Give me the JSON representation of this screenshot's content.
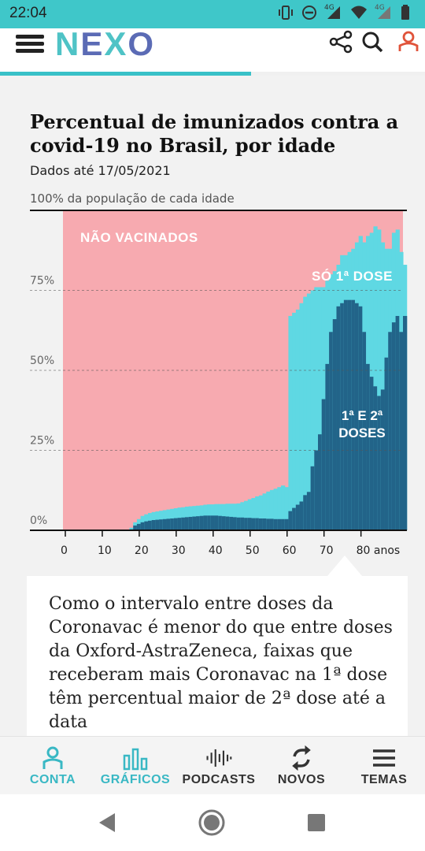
{
  "status_bar": {
    "time": "22:04",
    "network_label_1": "4G",
    "network_label_2": "4G",
    "icons": [
      "vibrate-icon",
      "dnd-icon",
      "signal-icon",
      "wifi-icon",
      "signal-icon",
      "battery-icon"
    ]
  },
  "header": {
    "logo": "NEXO",
    "read_progress": 0.59,
    "icons": [
      "menu-icon",
      "share-icon",
      "search-icon",
      "user-icon"
    ]
  },
  "chart": {
    "title": "Percentual de imunizados contra a covid-19 no Brasil, por idade",
    "subtitle": "Dados até 17/05/2021",
    "top_label": "100% da população de cada idade",
    "annotations": {
      "unvaccinated": "NÃO VACINADOS",
      "first_dose": "SÓ 1ª DOSE",
      "both_doses_line1": "1ª E 2ª",
      "both_doses_line2": "DOSES"
    },
    "colors": {
      "unvaccinated": "#f7aab0",
      "first_dose": "#5fd8e3",
      "both_doses": "#226489",
      "gridline": "#555555"
    }
  },
  "chart_data": {
    "type": "area",
    "stacked": true,
    "xlabel": "",
    "ylabel": "",
    "x_tick_labels": [
      "0",
      "10",
      "20",
      "30",
      "40",
      "50",
      "60",
      "70",
      "80 anos"
    ],
    "x_ticks": [
      0,
      10,
      20,
      30,
      40,
      50,
      60,
      70,
      80
    ],
    "y_tick_labels": [
      "0%",
      "25%",
      "50%",
      "75%"
    ],
    "y_ticks": [
      0,
      25,
      50,
      75
    ],
    "xlim": [
      0,
      92
    ],
    "ylim": [
      0,
      100
    ],
    "grid": "dashed horizontal",
    "legend": "in-chart labels",
    "x": [
      0,
      1,
      2,
      3,
      4,
      5,
      6,
      7,
      8,
      9,
      10,
      11,
      12,
      13,
      14,
      15,
      16,
      17,
      18,
      19,
      20,
      21,
      22,
      23,
      24,
      25,
      26,
      27,
      28,
      29,
      30,
      31,
      32,
      33,
      34,
      35,
      36,
      37,
      38,
      39,
      40,
      41,
      42,
      43,
      44,
      45,
      46,
      47,
      48,
      49,
      50,
      51,
      52,
      53,
      54,
      55,
      56,
      57,
      58,
      59,
      60,
      61,
      62,
      63,
      64,
      65,
      66,
      67,
      68,
      69,
      70,
      71,
      72,
      73,
      74,
      75,
      76,
      77,
      78,
      79,
      80,
      81,
      82,
      83,
      84,
      85,
      86,
      87,
      88,
      89,
      90,
      91,
      92
    ],
    "series": [
      {
        "name": "1ª E 2ª DOSES",
        "values": [
          0,
          0,
          0,
          0,
          0,
          0,
          0,
          0,
          0,
          0,
          0,
          0,
          0,
          0,
          0,
          0,
          0,
          0,
          0.3,
          1.5,
          2,
          2.5,
          2.8,
          3,
          3.2,
          3.3,
          3.4,
          3.5,
          3.6,
          3.7,
          3.8,
          3.9,
          4,
          4.1,
          4.2,
          4.3,
          4.4,
          4.5,
          4.6,
          4.6,
          4.6,
          4.6,
          4.5,
          4.4,
          4.3,
          4.2,
          4.1,
          4,
          4,
          3.9,
          3.9,
          3.8,
          3.8,
          3.7,
          3.7,
          3.6,
          3.6,
          3.5,
          3.5,
          3.5,
          3.5,
          6,
          7,
          8,
          9,
          11,
          12,
          20,
          25,
          30,
          41,
          52,
          62,
          66,
          70,
          71,
          72,
          72,
          72,
          71,
          70,
          62,
          52,
          48,
          45,
          42,
          44,
          54,
          62,
          65,
          67,
          62,
          67
        ]
      },
      {
        "name": "SÓ 1ª DOSE",
        "values": [
          0,
          0,
          0,
          0,
          0,
          0,
          0,
          0,
          0,
          0,
          0,
          0,
          0,
          0,
          0,
          0,
          0,
          0,
          0.5,
          1,
          1.5,
          2,
          2.2,
          2.4,
          2.5,
          2.6,
          2.7,
          2.8,
          2.9,
          3,
          3.1,
          3.2,
          3.2,
          3.3,
          3.3,
          3.3,
          3.3,
          3.3,
          3.4,
          3.5,
          3.5,
          3.6,
          3.7,
          3.8,
          4,
          4.1,
          4.2,
          4.4,
          4.8,
          5.3,
          5.8,
          6.3,
          6.8,
          7.2,
          7.8,
          8.5,
          9,
          9.5,
          10,
          10.5,
          10,
          61,
          61,
          61,
          62,
          62,
          62,
          55,
          51,
          46,
          35,
          26,
          18,
          15,
          13,
          15,
          14,
          15,
          16,
          19,
          22,
          28,
          40,
          45,
          50,
          52,
          46,
          34,
          26,
          28,
          27,
          25,
          16
        ]
      }
    ]
  },
  "caption": {
    "text": "Como o intervalo entre doses da Coronavac é menor do que entre doses da Oxford-AstraZeneca, faixas que receberam mais Coronavac na 1ª dose têm percentual maior de 2ª dose até a data"
  },
  "bottom_nav": {
    "items": [
      {
        "label": "CONTA",
        "icon": "person-icon",
        "active": true
      },
      {
        "label": "GRÁFICOS",
        "icon": "bar-chart-icon",
        "active": true
      },
      {
        "label": "PODCASTS",
        "icon": "audio-wave-icon",
        "active": false
      },
      {
        "label": "NOVOS",
        "icon": "refresh-icon",
        "active": false
      },
      {
        "label": "TEMAS",
        "icon": "list-icon",
        "active": false
      }
    ],
    "active_color": "#39b8c4",
    "inactive_color": "#333333"
  },
  "system_nav": {
    "icons": [
      "back-icon",
      "home-icon",
      "recents-icon"
    ]
  }
}
